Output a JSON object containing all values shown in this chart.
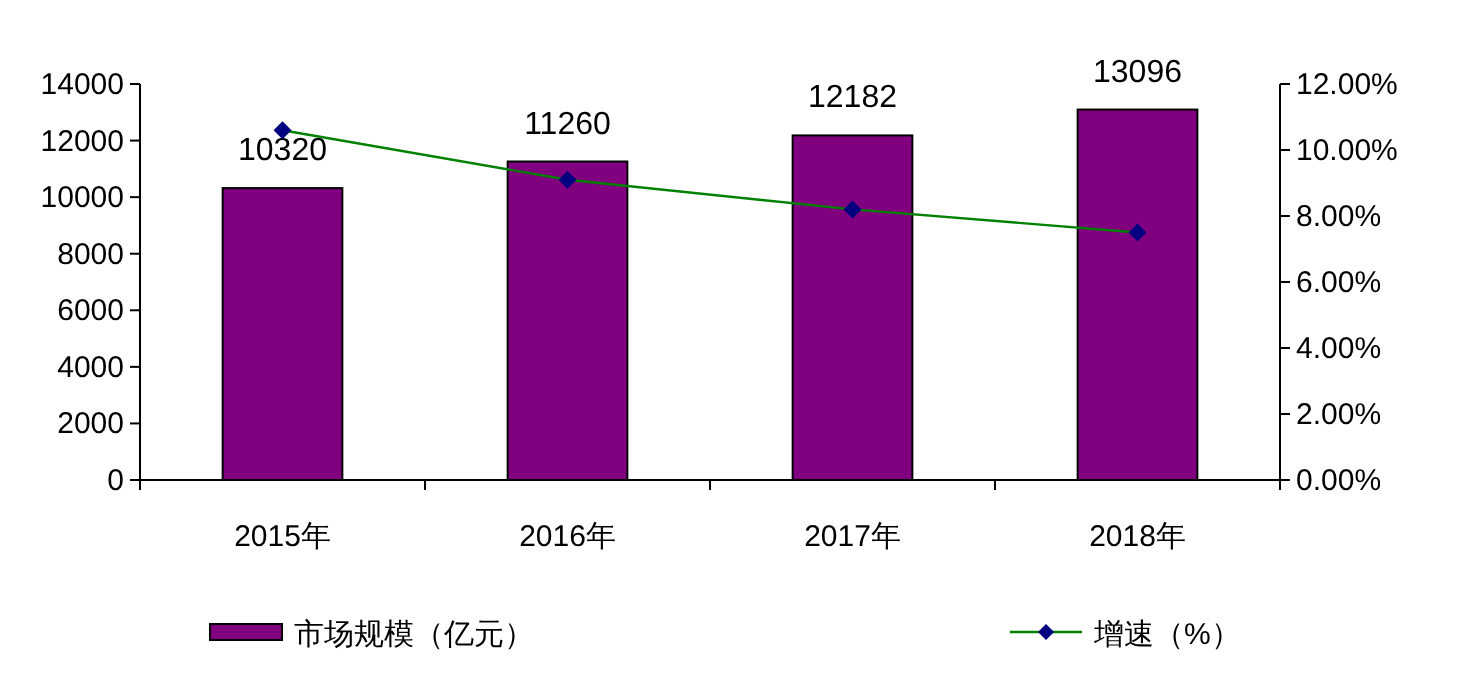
{
  "chart_data": {
    "type": "bar",
    "categories": [
      "2015年",
      "2016年",
      "2017年",
      "2018年"
    ],
    "series": [
      {
        "name": "市场规模（亿元）",
        "color": "#800080",
        "values": [
          10320,
          11260,
          12182,
          13096
        ],
        "value_labels": [
          "10320",
          "11260",
          "12182",
          "13096"
        ]
      },
      {
        "name": "增速（%）",
        "type": "line",
        "axis": "y2",
        "color": "#008000",
        "colors": [
          "#000080",
          "#000080",
          "#000080",
          "#000080"
        ],
        "values": [
          10.6,
          9.1,
          8.2,
          7.5
        ]
      }
    ],
    "ylim": [
      0,
      14000
    ],
    "yticks": [
      0,
      2000,
      4000,
      6000,
      8000,
      10000,
      12000,
      14000
    ],
    "y2lim": [
      0,
      12
    ],
    "y2ticks": [
      {
        "value": 0,
        "label": "0.00%"
      },
      {
        "value": 2,
        "label": "2.00%"
      },
      {
        "value": 4,
        "label": "4.00%"
      },
      {
        "value": 6,
        "label": "6.00%"
      },
      {
        "value": 8,
        "label": "8.00%"
      },
      {
        "value": 10,
        "label": "10.00%"
      },
      {
        "value": 12,
        "label": "12.00%"
      }
    ],
    "marker": "diamond",
    "legend": "bottom"
  }
}
